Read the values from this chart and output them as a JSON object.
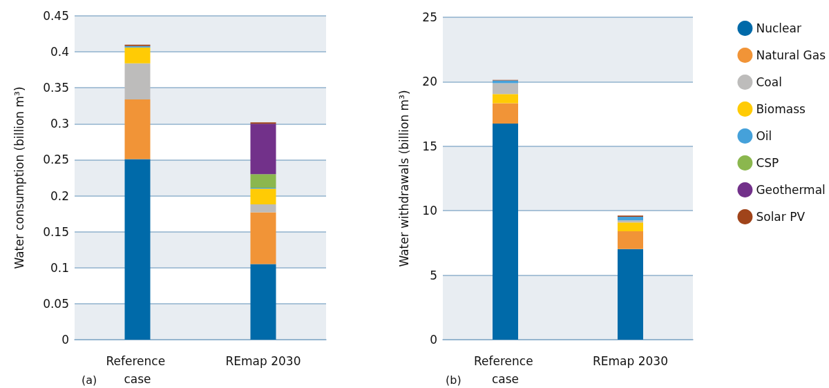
{
  "chart_data": [
    {
      "type": "bar",
      "ylabel": "Water consumption (billion m³)",
      "categories": [
        "Reference case",
        "REmap 2030"
      ],
      "stacked": true,
      "grid": "y",
      "legend": "right",
      "ylim": [
        0,
        0.45
      ],
      "yticks": [
        0,
        0.05,
        0.1,
        0.15,
        0.2,
        0.25,
        0.3,
        0.35,
        0.4,
        0.45
      ],
      "annotations": [
        "(a)"
      ],
      "series": [
        {
          "name": "Nuclear",
          "color": "#006aa9",
          "values": [
            0.251,
            0.105
          ]
        },
        {
          "name": "Natural Gas",
          "color": "#f19437",
          "values": [
            0.083,
            0.072
          ]
        },
        {
          "name": "Coal",
          "color": "#bdbcbb",
          "values": [
            0.05,
            0.011
          ]
        },
        {
          "name": "Biomass",
          "color": "#ffcb05",
          "values": [
            0.022,
            0.022
          ]
        },
        {
          "name": "Oil",
          "color": "#45a1da",
          "values": [
            0.002,
            0.001
          ]
        },
        {
          "name": "CSP",
          "color": "#8bb74e",
          "values": [
            null,
            0.019
          ]
        },
        {
          "name": "Geothermal",
          "color": "#72318a",
          "values": [
            null,
            0.07
          ]
        },
        {
          "name": "Solar PV",
          "color": "#a0441a",
          "values": [
            0.002,
            0.002
          ]
        }
      ]
    },
    {
      "type": "bar",
      "ylabel": "Water withdrawals (billion m³)",
      "categories": [
        "Reference case",
        "REmap 2030"
      ],
      "stacked": true,
      "grid": "y",
      "ylim": [
        0,
        25
      ],
      "yticks": [
        0,
        5,
        10,
        15,
        20,
        25
      ],
      "annotations": [
        "(b)"
      ],
      "series": [
        {
          "color": "#006aa9",
          "values": [
            16.75,
            7.03
          ]
        },
        {
          "color": "#f19437",
          "values": [
            1.59,
            1.37
          ]
        },
        {
          "color": "#ffcb05",
          "values": [
            0.7,
            0.69
          ]
        },
        {
          "color": "#bdbcbb",
          "values": [
            0.85,
            0.16
          ]
        },
        {
          "color": "#45a1da",
          "values": [
            0.21,
            0.28
          ]
        },
        {
          "color": "#a0441a",
          "values": [
            0.04,
            0.09
          ]
        }
      ]
    }
  ]
}
